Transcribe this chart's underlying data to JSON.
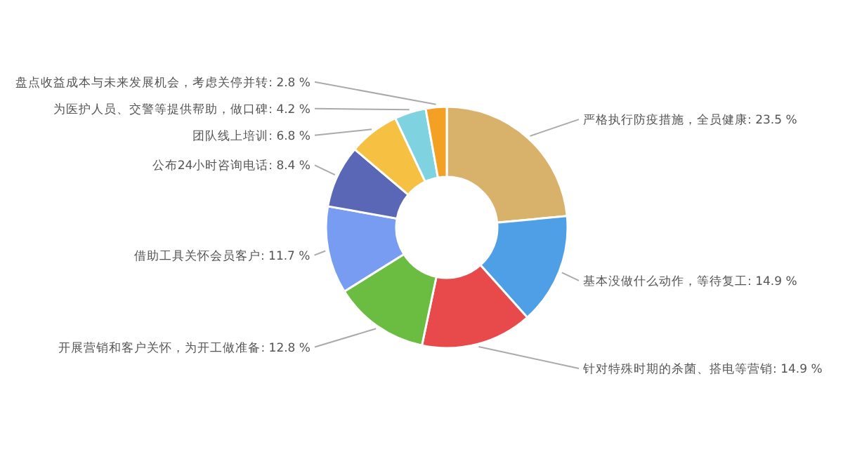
{
  "chart_data": {
    "type": "donut",
    "categories": [
      "严格执行防疫措施，全员健康",
      "基本没做什么动作，等待复工",
      "针对特殊时期的杀菌、搭电等营销",
      "开展营销和客户关怀，为开工做准备",
      "借助工具关怀会员客户",
      "公布24小时咨询电话",
      "团队线上培训",
      "为医护人员、交警等提供帮助，做口碑",
      "盘点收益成本与未来发展机会，考虑关停并转"
    ],
    "values": [
      23.5,
      14.9,
      14.9,
      12.8,
      11.7,
      8.4,
      6.8,
      4.2,
      2.8
    ],
    "value_labels": [
      "23.5 %",
      "14.9 %",
      "14.9 %",
      "12.8 %",
      "11.7 %",
      "8.4 %",
      "6.8 %",
      "4.2 %",
      "2.8 %"
    ],
    "colors": [
      "#d8b26b",
      "#4e9fe6",
      "#e8494b",
      "#6bbd42",
      "#789cf2",
      "#5a67b6",
      "#f6c143",
      "#7fd2df",
      "#f4a024"
    ]
  }
}
